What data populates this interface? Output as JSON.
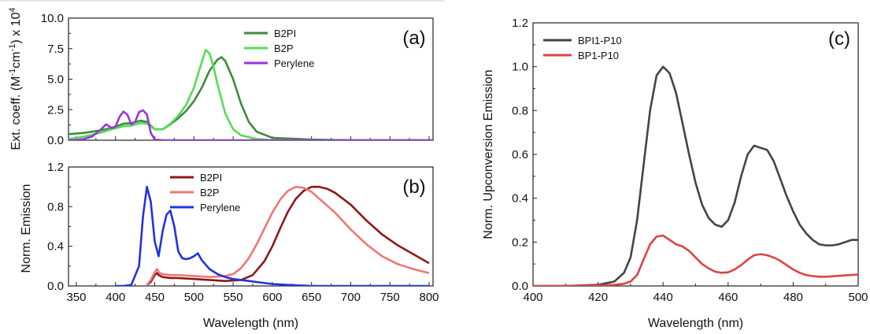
{
  "chart_data": [
    {
      "id": "a",
      "type": "line",
      "panel_label": "(a)",
      "ylabel_html": "Ext. coeff. (M<tspan dy='-6' font-size='11'>-1</tspan><tspan dy='6'>cm</tspan><tspan dy='-6' font-size='11'>-1</tspan><tspan dy='6'>) x 10</tspan><tspan dy='-6' font-size='11'>4</tspan>",
      "xlim": [
        340,
        805
      ],
      "ylim": [
        0,
        10
      ],
      "xticks": [
        350,
        400,
        450,
        500,
        550,
        600,
        650,
        700,
        750,
        800
      ],
      "yticks": [
        0.0,
        2.5,
        5.0,
        7.5,
        10.0
      ],
      "ytick_labels": [
        "0.0",
        "2.5",
        "5.0",
        "7.5",
        "10.0"
      ],
      "legend_position": "top-center",
      "series": [
        {
          "name": "B2PI",
          "color": "#3d8b3d",
          "x": [
            340,
            360,
            380,
            395,
            410,
            420,
            432,
            440,
            450,
            460,
            470,
            480,
            490,
            500,
            510,
            520,
            530,
            535,
            540,
            550,
            560,
            570,
            580,
            600,
            650,
            700,
            805
          ],
          "y": [
            0.5,
            0.6,
            0.8,
            1.0,
            1.35,
            1.4,
            1.6,
            1.5,
            0.9,
            0.9,
            1.3,
            1.8,
            2.4,
            3.2,
            4.3,
            5.7,
            6.6,
            6.8,
            6.5,
            5.0,
            3.0,
            1.5,
            0.7,
            0.2,
            0.05,
            0.0,
            0.0
          ]
        },
        {
          "name": "B2P",
          "color": "#55dd55",
          "x": [
            340,
            360,
            380,
            395,
            410,
            420,
            432,
            440,
            450,
            460,
            470,
            480,
            490,
            500,
            508,
            515,
            520,
            525,
            530,
            540,
            550,
            560,
            580,
            600,
            650,
            805
          ],
          "y": [
            0.1,
            0.3,
            0.6,
            0.9,
            1.15,
            1.2,
            1.4,
            1.35,
            0.9,
            0.9,
            1.35,
            2.0,
            2.9,
            4.3,
            6.0,
            7.4,
            7.1,
            6.0,
            4.6,
            2.2,
            0.9,
            0.4,
            0.1,
            0.0,
            0.0,
            0.0
          ]
        },
        {
          "name": "Perylene",
          "color": "#9933dd",
          "x": [
            340,
            350,
            360,
            370,
            380,
            388,
            395,
            400,
            405,
            410,
            415,
            420,
            425,
            430,
            435,
            440,
            445,
            450,
            460,
            480,
            600,
            805
          ],
          "y": [
            0.0,
            0.02,
            0.1,
            0.3,
            0.8,
            1.3,
            1.0,
            1.1,
            1.9,
            2.35,
            2.1,
            1.3,
            1.5,
            2.3,
            2.45,
            2.1,
            0.6,
            0.05,
            0.0,
            0.0,
            0.0,
            0.0
          ]
        }
      ]
    },
    {
      "id": "b",
      "type": "line",
      "panel_label": "(b)",
      "ylabel_html": "Norm. Emission",
      "xlabel": "Wavelength (nm)",
      "xlim": [
        340,
        805
      ],
      "ylim": [
        0,
        1.2
      ],
      "xticks": [
        350,
        400,
        450,
        500,
        550,
        600,
        650,
        700,
        750,
        800
      ],
      "yticks": [
        0.0,
        0.4,
        0.8,
        1.2
      ],
      "ytick_labels": [
        "0.0",
        "0.4",
        "0.8",
        "1.2"
      ],
      "legend_position": "top-center",
      "series": [
        {
          "name": "B2PI",
          "color": "#8b1a1a",
          "x": [
            440,
            445,
            450,
            453,
            455,
            460,
            470,
            480,
            500,
            520,
            540,
            560,
            575,
            590,
            600,
            610,
            620,
            630,
            640,
            650,
            660,
            670,
            680,
            700,
            720,
            740,
            760,
            780,
            800
          ],
          "y": [
            0.01,
            0.04,
            0.11,
            0.13,
            0.11,
            0.09,
            0.08,
            0.08,
            0.07,
            0.06,
            0.05,
            0.06,
            0.11,
            0.25,
            0.4,
            0.58,
            0.75,
            0.88,
            0.96,
            1.0,
            1.0,
            0.98,
            0.94,
            0.82,
            0.66,
            0.52,
            0.41,
            0.32,
            0.23
          ]
        },
        {
          "name": "B2P",
          "color": "#ee7777",
          "x": [
            440,
            445,
            450,
            453,
            456,
            460,
            470,
            480,
            500,
            520,
            540,
            550,
            560,
            570,
            580,
            590,
            600,
            610,
            620,
            630,
            640,
            650,
            660,
            680,
            700,
            720,
            740,
            760,
            780,
            800
          ],
          "y": [
            0.01,
            0.06,
            0.14,
            0.17,
            0.13,
            0.12,
            0.11,
            0.11,
            0.1,
            0.09,
            0.1,
            0.12,
            0.18,
            0.28,
            0.42,
            0.58,
            0.74,
            0.87,
            0.96,
            1.0,
            0.99,
            0.95,
            0.88,
            0.74,
            0.57,
            0.42,
            0.3,
            0.22,
            0.17,
            0.13
          ]
        },
        {
          "name": "Perylene",
          "color": "#2233dd",
          "x": [
            400,
            410,
            420,
            430,
            435,
            440,
            445,
            450,
            455,
            460,
            465,
            470,
            475,
            480,
            485,
            490,
            495,
            500,
            505,
            510,
            520,
            530,
            540,
            550,
            560,
            570,
            580,
            600,
            620,
            650,
            700,
            800
          ],
          "y": [
            0.0,
            0.0,
            0.01,
            0.2,
            0.7,
            1.0,
            0.85,
            0.45,
            0.3,
            0.55,
            0.72,
            0.76,
            0.6,
            0.35,
            0.28,
            0.27,
            0.28,
            0.3,
            0.33,
            0.26,
            0.17,
            0.12,
            0.09,
            0.07,
            0.06,
            0.05,
            0.04,
            0.02,
            0.01,
            0.0,
            0.0,
            0.0
          ]
        }
      ]
    },
    {
      "id": "c",
      "type": "line",
      "panel_label": "(c)",
      "ylabel_html": "Norm. Upconversion Emission",
      "xlabel": "Wavelength (nm)",
      "xlim": [
        400,
        500
      ],
      "ylim": [
        0,
        1.2
      ],
      "xticks": [
        400,
        420,
        440,
        460,
        480,
        500
      ],
      "yticks": [
        0.0,
        0.2,
        0.4,
        0.6,
        0.8,
        1.0,
        1.2
      ],
      "ytick_labels": [
        "0.0",
        "0.2",
        "0.4",
        "0.6",
        "0.8",
        "1.0",
        "1.2"
      ],
      "legend_position": "top-left",
      "series": [
        {
          "name": "BPI1-P10",
          "color": "#444444",
          "x": [
            400,
            410,
            420,
            425,
            428,
            430,
            432,
            434,
            436,
            438,
            440,
            442,
            444,
            446,
            448,
            450,
            452,
            454,
            456,
            458,
            460,
            462,
            464,
            466,
            468,
            470,
            472,
            474,
            476,
            478,
            480,
            482,
            484,
            486,
            488,
            490,
            492,
            494,
            496,
            498,
            500
          ],
          "y": [
            0.0,
            0.0,
            0.005,
            0.02,
            0.06,
            0.13,
            0.3,
            0.55,
            0.8,
            0.96,
            1.0,
            0.97,
            0.88,
            0.74,
            0.6,
            0.47,
            0.37,
            0.31,
            0.28,
            0.27,
            0.3,
            0.38,
            0.5,
            0.6,
            0.64,
            0.63,
            0.62,
            0.57,
            0.49,
            0.41,
            0.34,
            0.28,
            0.24,
            0.21,
            0.19,
            0.185,
            0.185,
            0.19,
            0.2,
            0.21,
            0.21
          ]
        },
        {
          "name": "BP1-P10",
          "color": "#dd4444",
          "x": [
            400,
            410,
            420,
            425,
            428,
            430,
            432,
            434,
            436,
            438,
            440,
            442,
            444,
            446,
            448,
            450,
            452,
            454,
            456,
            458,
            460,
            462,
            464,
            466,
            468,
            470,
            472,
            474,
            476,
            478,
            480,
            482,
            484,
            486,
            488,
            490,
            492,
            494,
            496,
            498,
            500
          ],
          "y": [
            0.0,
            0.0,
            0.002,
            0.005,
            0.01,
            0.02,
            0.05,
            0.12,
            0.19,
            0.225,
            0.23,
            0.21,
            0.19,
            0.18,
            0.16,
            0.13,
            0.1,
            0.08,
            0.065,
            0.06,
            0.062,
            0.075,
            0.095,
            0.12,
            0.14,
            0.145,
            0.14,
            0.13,
            0.115,
            0.095,
            0.075,
            0.06,
            0.05,
            0.045,
            0.042,
            0.042,
            0.044,
            0.046,
            0.048,
            0.05,
            0.052
          ]
        }
      ]
    }
  ]
}
